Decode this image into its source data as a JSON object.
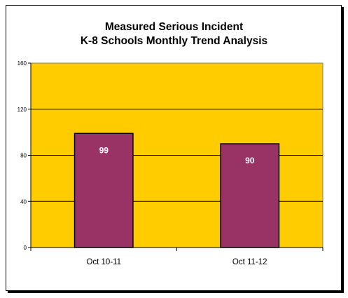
{
  "chart_data": {
    "type": "bar",
    "title_line1": "Measured Serious Incident",
    "title_line2": "K-8 Schools Monthly Trend Analysis",
    "categories": [
      "Oct 10-11",
      "Oct 11-12"
    ],
    "values": [
      99,
      90
    ],
    "data_labels": [
      "99",
      "90"
    ],
    "xlabel": "",
    "ylabel": "",
    "ylim": [
      0,
      160
    ],
    "yticks": [
      0,
      40,
      80,
      120,
      160
    ],
    "grid": true,
    "legend": "none",
    "colors": {
      "plot_background": "#FFCC00",
      "bar_fill": "#993366",
      "bar_stroke": "#000000",
      "gridline": "#000000",
      "data_label": "#FFFFFF"
    }
  }
}
